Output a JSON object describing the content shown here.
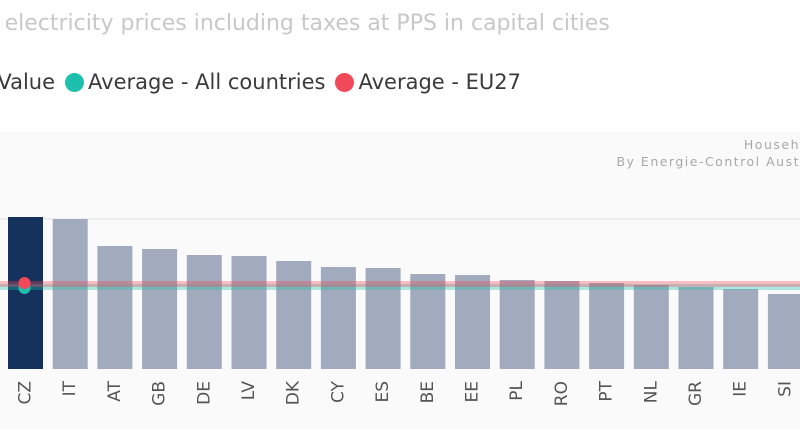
{
  "title": "al electricity prices including taxes at PPS in capital cities",
  "legend": [
    {
      "label": "ty Value",
      "color": ""
    },
    {
      "label": "Average - All countries",
      "color": "#1ebfad"
    },
    {
      "label": "Average - EU27",
      "color": "#f04a5a"
    }
  ],
  "watermark": {
    "line1": "Househ",
    "line2": "By Energie-Control Aust"
  },
  "colors": {
    "highlight_bar": "#15325c",
    "bar": "#a2abbd",
    "avg_all": "#1ebfad",
    "avg_eu27": "#f04a5a",
    "grid": "#e3e3e3"
  },
  "chart_data": {
    "type": "bar",
    "title": "al electricity prices including taxes at PPS in capital cities",
    "categories": [
      "CZ",
      "IT",
      "AT",
      "GB",
      "DE",
      "LV",
      "DK",
      "CY",
      "ES",
      "BE",
      "EE",
      "PL",
      "RO",
      "PT",
      "NL",
      "GR",
      "IE",
      "SI"
    ],
    "values": [
      152,
      150,
      123,
      120,
      114,
      113,
      108,
      102,
      101,
      95,
      94,
      89,
      88,
      86,
      84,
      82,
      80,
      75
    ],
    "highlighted": "CZ",
    "averages": {
      "Average - All countries": 82,
      "Average - EU27": 85
    },
    "ylim": [
      0,
      170
    ],
    "gridlines": [
      150
    ],
    "grid": true,
    "legend_position": "top-left"
  }
}
